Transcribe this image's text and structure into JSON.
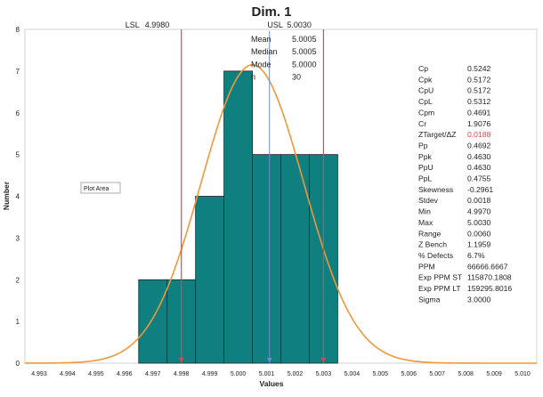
{
  "chart_data": {
    "type": "bar",
    "title": "Dim. 1",
    "xlabel": "Values",
    "ylabel": "Number",
    "xlim": [
      4.9925,
      5.0105
    ],
    "ylim": [
      0,
      8
    ],
    "x_ticks": [
      "4.993",
      "4.994",
      "4.995",
      "4.996",
      "4.997",
      "4.998",
      "4.999",
      "5.000",
      "5.001",
      "5.002",
      "5.003",
      "5.004",
      "5.005",
      "5.006",
      "5.007",
      "5.008",
      "5.009",
      "5.010"
    ],
    "y_ticks": [
      "0",
      "1",
      "2",
      "3",
      "4",
      "5",
      "6",
      "7",
      "8"
    ],
    "bins": [
      {
        "x0": 4.9965,
        "x1": 4.9975,
        "count": 2
      },
      {
        "x0": 4.9975,
        "x1": 4.9985,
        "count": 2
      },
      {
        "x0": 4.9985,
        "x1": 4.9995,
        "count": 4
      },
      {
        "x0": 4.9995,
        "x1": 5.0005,
        "count": 7
      },
      {
        "x0": 5.0005,
        "x1": 5.0015,
        "count": 5
      },
      {
        "x0": 5.0015,
        "x1": 5.0025,
        "count": 5
      },
      {
        "x0": 5.0025,
        "x1": 5.0035,
        "count": 5
      }
    ],
    "bar_color": "#0f7f7f",
    "curve_color": "#f0983a",
    "limit_color": "#e0474c",
    "mean_line_color": "#6f8fcc",
    "normal_curve": {
      "mean": 5.0005,
      "stdev": 0.0018,
      "peak": 7.15
    },
    "lsl": {
      "label": "LSL",
      "value": 4.998,
      "text": "4.9980"
    },
    "usl": {
      "label": "USL",
      "value": 5.003,
      "text": "5.0030"
    },
    "summary": [
      {
        "label": "Mean",
        "value": "5.0005"
      },
      {
        "label": "Median",
        "value": "5.0005"
      },
      {
        "label": "Mode",
        "value": "5.0000"
      },
      {
        "label": "n",
        "value": "30"
      }
    ],
    "plot_area_tooltip": "Plot Area",
    "stats": [
      {
        "label": "Cp",
        "value": "0.5242"
      },
      {
        "label": "Cpk",
        "value": "0.5172"
      },
      {
        "label": "CpU",
        "value": "0.5172"
      },
      {
        "label": "CpL",
        "value": "0.5312"
      },
      {
        "label": "Cpm",
        "value": "0.4691"
      },
      {
        "label": "Cr",
        "value": "1.9076"
      },
      {
        "label": "ZTarget/ΔZ",
        "value": "0.0188",
        "highlight": true
      },
      {
        "label": "Pp",
        "value": "0.4692"
      },
      {
        "label": "Ppk",
        "value": "0.4630"
      },
      {
        "label": "PpU",
        "value": "0.4630"
      },
      {
        "label": "PpL",
        "value": "0.4755"
      },
      {
        "label": "Skewness",
        "value": "-0.2961"
      },
      {
        "label": "Stdev",
        "value": "0.0018"
      },
      {
        "label": "Min",
        "value": "4.9970"
      },
      {
        "label": "Max",
        "value": "5.0030"
      },
      {
        "label": "Range",
        "value": "0.0060"
      },
      {
        "label": "Z Bench",
        "value": "1.1959"
      },
      {
        "label": "% Defects",
        "value": "6.7%"
      },
      {
        "label": "PPM",
        "value": "66666.6667"
      },
      {
        "label": "Exp PPM ST",
        "value": "115870.1808"
      },
      {
        "label": "Exp PPM LT",
        "value": "159295.8016"
      },
      {
        "label": "Sigma",
        "value": "3.0000"
      }
    ],
    "highlight_color": "#e0474c",
    "grid": false,
    "legend": "none"
  }
}
